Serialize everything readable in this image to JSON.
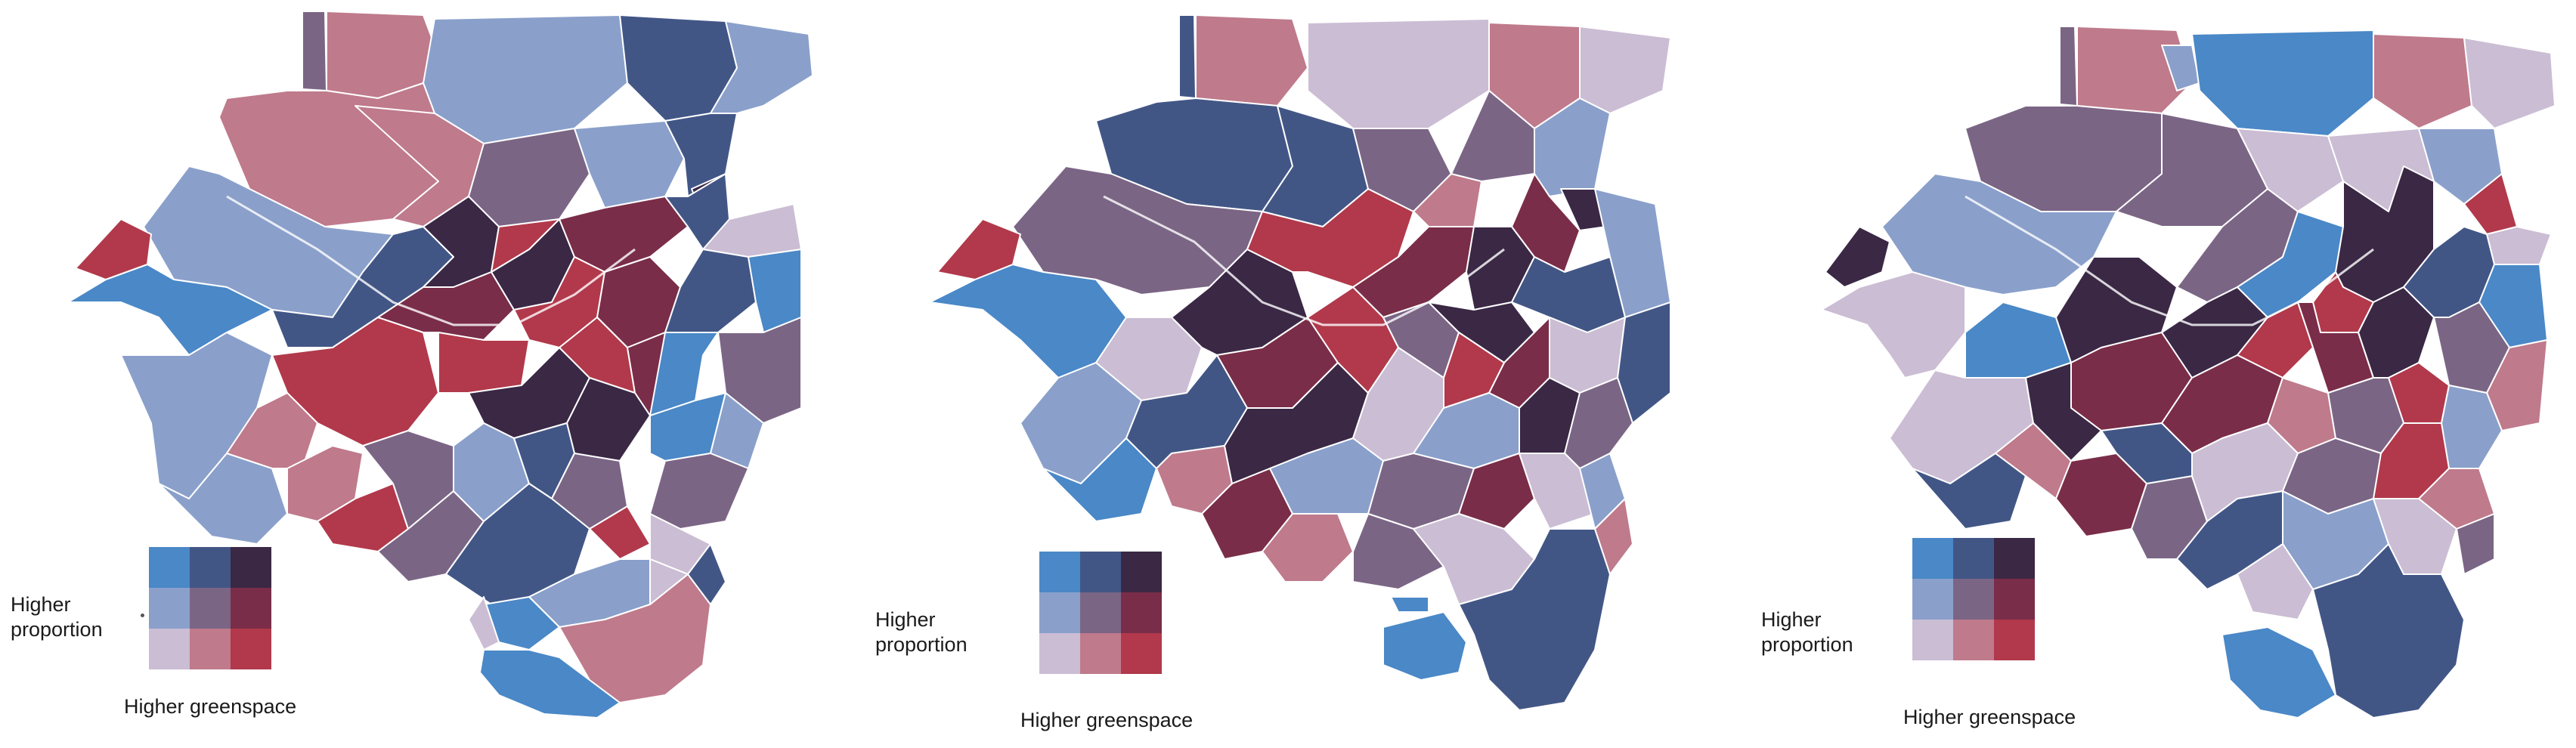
{
  "figure": {
    "description_free": true,
    "maps": [
      {
        "id": "map-1",
        "legend": {
          "y_label": "Higher\nproportion",
          "x_label": "Higher greenspace",
          "colors": [
            [
              "#4a88c7",
              "#425686",
              "#3a2845"
            ],
            [
              "#8aa0cb",
              "#7b6585",
              "#7a2d48"
            ],
            [
              "#cbbdd4",
              "#bf7a8c",
              "#b1394b"
            ]
          ]
        }
      },
      {
        "id": "map-2",
        "legend": {
          "y_label": "Higher\nproportion",
          "x_label": "Higher greenspace",
          "colors": [
            [
              "#4a88c7",
              "#425686",
              "#3a2845"
            ],
            [
              "#8aa0cb",
              "#7b6585",
              "#7a2d48"
            ],
            [
              "#cbbdd4",
              "#bf7a8c",
              "#b1394b"
            ]
          ]
        }
      },
      {
        "id": "map-3",
        "legend": {
          "y_label": "Higher\nproportion",
          "x_label": "Higher greenspace",
          "colors": [
            [
              "#4a88c7",
              "#425686",
              "#3a2845"
            ],
            [
              "#8aa0cb",
              "#7b6585",
              "#7a2d48"
            ],
            [
              "#cbbdd4",
              "#bf7a8c",
              "#b1394b"
            ]
          ]
        }
      }
    ],
    "palette": {
      "c00": "#4a88c7",
      "c01": "#425686",
      "c02": "#3a2845",
      "c10": "#8aa0cb",
      "c11": "#7b6585",
      "c12": "#7a2d48",
      "c20": "#cbbdd4",
      "c21": "#bf7a8c",
      "c22": "#b1394b"
    }
  }
}
